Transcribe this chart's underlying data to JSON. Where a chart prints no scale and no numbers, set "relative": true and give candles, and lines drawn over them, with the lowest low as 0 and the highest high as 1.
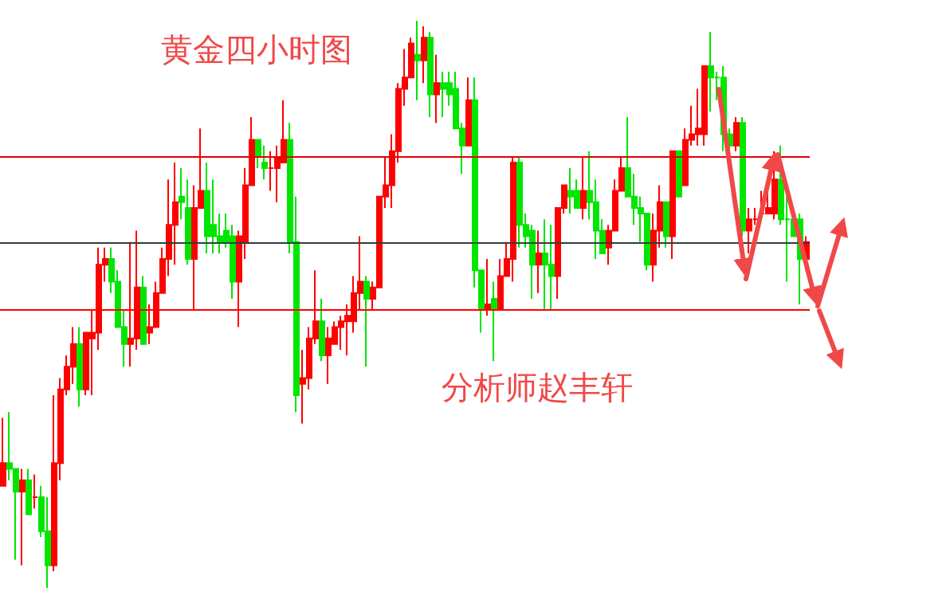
{
  "chart_data": {
    "type": "candlestick",
    "title": "黄金四小时图",
    "annotations": [
      "分析师赵丰轩"
    ],
    "relative": true,
    "categories": [
      null,
      null,
      null,
      null,
      null,
      null,
      null,
      null,
      null,
      null,
      null,
      null,
      null,
      null,
      null,
      null,
      null,
      null,
      null,
      null,
      null,
      null,
      null,
      null,
      null,
      null,
      null,
      null,
      null,
      null,
      null,
      null,
      null,
      null,
      null,
      null,
      null,
      null,
      null,
      null,
      null,
      null,
      null,
      null,
      null,
      null,
      null,
      null,
      null,
      null,
      null,
      null,
      null,
      null,
      null,
      null,
      null,
      null,
      null,
      null,
      null,
      null,
      null,
      null,
      null,
      null,
      null,
      null,
      null,
      null,
      null,
      null,
      null,
      null,
      null,
      null,
      null,
      null,
      null,
      null,
      null,
      null,
      null,
      null,
      null,
      null,
      null,
      null,
      null,
      null,
      null,
      null,
      null,
      null,
      null,
      null,
      null,
      null,
      null,
      null,
      null,
      null,
      null,
      null,
      null,
      null,
      null,
      null,
      null,
      null,
      null,
      null,
      null,
      null,
      null,
      null,
      null,
      null,
      null,
      null,
      null,
      null,
      null,
      null,
      null,
      null,
      null
    ],
    "ohlc": [
      [
        0.18,
        0.3,
        0.18,
        0.22
      ],
      [
        0.22,
        0.31,
        0.19,
        0.21
      ],
      [
        0.21,
        0.21,
        0.05,
        0.17
      ],
      [
        0.17,
        0.21,
        0.04,
        0.19
      ],
      [
        0.19,
        0.21,
        0.13,
        0.13
      ],
      [
        0.16,
        0.2,
        0.14,
        0.16
      ],
      [
        0.16,
        0.18,
        0.09,
        0.1
      ],
      [
        0.1,
        0.16,
        0,
        0.04
      ],
      [
        0.04,
        0.34,
        0.03,
        0.22
      ],
      [
        0.22,
        0.37,
        0.19,
        0.35
      ],
      [
        0.35,
        0.41,
        0.34,
        0.39
      ],
      [
        0.39,
        0.46,
        0.36,
        0.43
      ],
      [
        0.43,
        0.46,
        0.32,
        0.35
      ],
      [
        0.35,
        0.45,
        0.34,
        0.45
      ],
      [
        0.44,
        0.49,
        0.34,
        0.45
      ],
      [
        0.45,
        0.6,
        0.42,
        0.57
      ],
      [
        0.57,
        0.6,
        0.54,
        0.58
      ],
      [
        0.58,
        0.6,
        0.52,
        0.54
      ],
      [
        0.54,
        0.56,
        0.46,
        0.46
      ],
      [
        0.46,
        0.49,
        0.39,
        0.43
      ],
      [
        0.43,
        0.61,
        0.39,
        0.44
      ],
      [
        0.44,
        0.63,
        0.42,
        0.53
      ],
      [
        0.53,
        0.55,
        0.43,
        0.43
      ],
      [
        0.45,
        0.5,
        0.43,
        0.46
      ],
      [
        0.46,
        0.54,
        0.46,
        0.52
      ],
      [
        0.52,
        0.6,
        0.52,
        0.58
      ],
      [
        0.58,
        0.72,
        0.55,
        0.64
      ],
      [
        0.64,
        0.75,
        0.57,
        0.68
      ],
      [
        0.69,
        0.74,
        0.65,
        0.68
      ],
      [
        0.67,
        0.72,
        0.57,
        0.58
      ],
      [
        0.58,
        0.71,
        0.49,
        0.67
      ],
      [
        0.67,
        0.81,
        0.67,
        0.7
      ],
      [
        0.7,
        0.75,
        0.59,
        0.62
      ],
      [
        0.64,
        0.72,
        0.59,
        0.62
      ],
      [
        0.62,
        0.66,
        0.59,
        0.61
      ],
      [
        0.63,
        0.66,
        0.6,
        0.61
      ],
      [
        0.62,
        0.64,
        0.51,
        0.54
      ],
      [
        0.54,
        0.63,
        0.46,
        0.62
      ],
      [
        0.61,
        0.74,
        0.58,
        0.71
      ],
      [
        0.71,
        0.83,
        0.71,
        0.79
      ],
      [
        0.79,
        0.79,
        0.74,
        0.76
      ],
      [
        0.75,
        0.78,
        0.72,
        0.74
      ],
      [
        0.74,
        0.77,
        0.7,
        0.74
      ],
      [
        0.74,
        0.78,
        0.68,
        0.76
      ],
      [
        0.75,
        0.86,
        0.75,
        0.79
      ],
      [
        0.79,
        0.82,
        0.59,
        0.61
      ],
      [
        0.61,
        0.69,
        0.31,
        0.34
      ],
      [
        0.36,
        0.42,
        0.29,
        0.37
      ],
      [
        0.37,
        0.46,
        0.35,
        0.44
      ],
      [
        0.44,
        0.56,
        0.43,
        0.47
      ],
      [
        0.47,
        0.51,
        0.4,
        0.41
      ],
      [
        0.41,
        0.46,
        0.36,
        0.44
      ],
      [
        0.43,
        0.47,
        0.43,
        0.46
      ],
      [
        0.46,
        0.48,
        0.42,
        0.47
      ],
      [
        0.47,
        0.5,
        0.41,
        0.48
      ],
      [
        0.47,
        0.55,
        0.45,
        0.52
      ],
      [
        0.52,
        0.62,
        0.49,
        0.54
      ],
      [
        0.54,
        0.55,
        0.39,
        0.51
      ],
      [
        0.51,
        0.54,
        0.49,
        0.53
      ],
      [
        0.53,
        0.69,
        0.53,
        0.69
      ],
      [
        0.69,
        0.76,
        0.67,
        0.71
      ],
      [
        0.71,
        0.8,
        0.67,
        0.77
      ],
      [
        0.77,
        0.89,
        0.75,
        0.88
      ],
      [
        0.88,
        0.95,
        0.85,
        0.9
      ],
      [
        0.9,
        0.97,
        0.9,
        0.96
      ],
      [
        0.94,
        1,
        0.86,
        0.93
      ],
      [
        0.93,
        0.99,
        0.89,
        0.97
      ],
      [
        0.97,
        0.98,
        0.83,
        0.87
      ],
      [
        0.87,
        0.94,
        0.82,
        0.89
      ],
      [
        0.89,
        0.91,
        0.83,
        0.88
      ],
      [
        0.89,
        0.91,
        0.85,
        0.87
      ],
      [
        0.88,
        0.91,
        0.81,
        0.81
      ],
      [
        0.81,
        0.82,
        0.73,
        0.78
      ],
      [
        0.78,
        0.9,
        0.78,
        0.86
      ],
      [
        0.86,
        0.9,
        0.53,
        0.56
      ],
      [
        0.56,
        0.56,
        0.45,
        0.49
      ],
      [
        0.49,
        0.58,
        0.48,
        0.5
      ],
      [
        0.51,
        0.54,
        0.4,
        0.49
      ],
      [
        0.49,
        0.58,
        0.49,
        0.55
      ],
      [
        0.55,
        0.61,
        0.55,
        0.58
      ],
      [
        0.58,
        0.76,
        0.54,
        0.75
      ],
      [
        0.75,
        0.76,
        0.6,
        0.64
      ],
      [
        0.64,
        0.66,
        0.6,
        0.62
      ],
      [
        0.63,
        0.64,
        0.51,
        0.57
      ],
      [
        0.57,
        0.63,
        0.52,
        0.59
      ],
      [
        0.59,
        0.65,
        0.49,
        0.57
      ],
      [
        0.57,
        0.64,
        0.49,
        0.55
      ],
      [
        0.55,
        0.67,
        0.51,
        0.67
      ],
      [
        0.67,
        0.71,
        0.66,
        0.71
      ],
      [
        0.7,
        0.74,
        0.66,
        0.69
      ],
      [
        0.7,
        0.72,
        0.67,
        0.67
      ],
      [
        0.67,
        0.76,
        0.65,
        0.7
      ],
      [
        0.7,
        0.77,
        0.65,
        0.68
      ],
      [
        0.68,
        0.72,
        0.58,
        0.63
      ],
      [
        0.63,
        0.65,
        0.59,
        0.59
      ],
      [
        0.6,
        0.64,
        0.57,
        0.63
      ],
      [
        0.63,
        0.72,
        0.63,
        0.7
      ],
      [
        0.7,
        0.76,
        0.7,
        0.74
      ],
      [
        0.74,
        0.83,
        0.69,
        0.69
      ],
      [
        0.69,
        0.73,
        0.64,
        0.67
      ],
      [
        0.67,
        0.69,
        0.61,
        0.66
      ],
      [
        0.66,
        0.66,
        0.56,
        0.57
      ],
      [
        0.57,
        0.66,
        0.54,
        0.63
      ],
      [
        0.63,
        0.71,
        0.6,
        0.68
      ],
      [
        0.68,
        0.68,
        0.6,
        0.62
      ],
      [
        0.62,
        0.77,
        0.58,
        0.77
      ],
      [
        0.77,
        0.77,
        0.69,
        0.69
      ],
      [
        0.71,
        0.81,
        0.71,
        0.79
      ],
      [
        0.79,
        0.85,
        0.78,
        0.8
      ],
      [
        0.8,
        0.88,
        0.78,
        0.81
      ],
      [
        0.8,
        0.92,
        0.78,
        0.92
      ],
      [
        0.92,
        0.98,
        0.84,
        0.9
      ],
      [
        0.9,
        0.91,
        0.86,
        0.9
      ],
      [
        0.9,
        0.92,
        0.77,
        0.8
      ],
      [
        0.8,
        0.81,
        0.77,
        0.78
      ],
      [
        0.78,
        0.83,
        0.77,
        0.82
      ],
      [
        0.82,
        0.83,
        0.62,
        0.63
      ],
      [
        0.63,
        0.67,
        0.59,
        0.65
      ],
      [
        0.65,
        0.67,
        0.64,
        0.65
      ],
      [
        0.66,
        0.7,
        0.65,
        0.66
      ],
      [
        0.66,
        0.7,
        0.66,
        0.67
      ],
      [
        0.66,
        0.77,
        0.65,
        0.72
      ],
      [
        0.72,
        0.78,
        0.64,
        0.65
      ],
      [
        0.65,
        0.69,
        0.54,
        0.65
      ],
      [
        0.65,
        0.66,
        0.62,
        0.62
      ],
      [
        0.65,
        0.66,
        0.5,
        0.58
      ],
      [
        0.58,
        0.62,
        0.56,
        0.61
      ]
    ],
    "colors": [
      "#ff0000",
      "#00e600",
      "#00e600",
      "#ff0000",
      "#00e600",
      "#ff0000",
      "#00e600",
      "#00e600",
      "#ff0000",
      "#ff0000",
      "#ff0000",
      "#ff0000",
      "#00e600",
      "#ff0000",
      "#ff0000",
      "#ff0000",
      "#ff0000",
      "#00e600",
      "#00e600",
      "#00e600",
      "#ff0000",
      "#ff0000",
      "#00e600",
      "#ff0000",
      "#ff0000",
      "#ff0000",
      "#ff0000",
      "#ff0000",
      "#00e600",
      "#00e600",
      "#ff0000",
      "#ff0000",
      "#00e600",
      "#00e600",
      "#00e600",
      "#00e600",
      "#00e600",
      "#ff0000",
      "#ff0000",
      "#ff0000",
      "#00e600",
      "#00e600",
      "#ff0000",
      "#ff0000",
      "#ff0000",
      "#00e600",
      "#00e600",
      "#ff0000",
      "#ff0000",
      "#ff0000",
      "#00e600",
      "#ff0000",
      "#ff0000",
      "#ff0000",
      "#ff0000",
      "#ff0000",
      "#ff0000",
      "#00e600",
      "#ff0000",
      "#ff0000",
      "#ff0000",
      "#ff0000",
      "#ff0000",
      "#ff0000",
      "#ff0000",
      "#00e600",
      "#ff0000",
      "#00e600",
      "#ff0000",
      "#00e600",
      "#00e600",
      "#00e600",
      "#00e600",
      "#ff0000",
      "#00e600",
      "#00e600",
      "#ff0000",
      "#00e600",
      "#ff0000",
      "#ff0000",
      "#ff0000",
      "#00e600",
      "#00e600",
      "#00e600",
      "#ff0000",
      "#00e600",
      "#00e600",
      "#ff0000",
      "#ff0000",
      "#00e600",
      "#00e600",
      "#ff0000",
      "#00e600",
      "#00e600",
      "#00e600",
      "#ff0000",
      "#ff0000",
      "#ff0000",
      "#00e600",
      "#00e600",
      "#00e600",
      "#00e600",
      "#ff0000",
      "#ff0000",
      "#00e600",
      "#ff0000",
      "#00e600",
      "#ff0000",
      "#ff0000",
      "#ff0000",
      "#ff0000",
      "#00e600",
      "#00e600",
      "#00e600",
      "#00e600",
      "#ff0000",
      "#00e600",
      "#ff0000",
      "#ff0000",
      "#ff0000",
      "#ff0000",
      "#ff0000",
      "#00e600",
      "#00e600",
      "#00e600",
      "#00e600",
      "#ff0000"
    ],
    "ref_lines": [
      {
        "axis": "y",
        "value": 0.76,
        "color": "#e00000"
      },
      {
        "axis": "y",
        "value": 0.61,
        "color": "#2f3f3f"
      },
      {
        "axis": "y",
        "value": 0.49,
        "color": "#ff0000"
      }
    ]
  }
}
